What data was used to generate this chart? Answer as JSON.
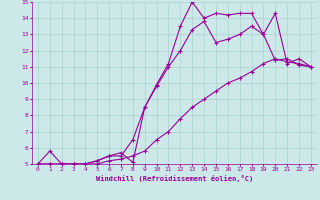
{
  "xlabel": "Windchill (Refroidissement éolien,°C)",
  "xlim": [
    -0.5,
    23.5
  ],
  "ylim": [
    5,
    15
  ],
  "xticks": [
    0,
    1,
    2,
    3,
    4,
    5,
    6,
    7,
    8,
    9,
    10,
    11,
    12,
    13,
    14,
    15,
    16,
    17,
    18,
    19,
    20,
    21,
    22,
    23
  ],
  "yticks": [
    5,
    6,
    7,
    8,
    9,
    10,
    11,
    12,
    13,
    14,
    15
  ],
  "background_color": "#cce8e8",
  "grid_color": "#aad0d0",
  "line_color": "#990099",
  "line1_x": [
    0,
    1,
    2,
    3,
    4,
    5,
    6,
    7,
    8,
    9,
    10,
    11,
    12,
    13,
    14,
    15,
    16,
    17,
    18,
    19,
    20,
    21,
    22,
    23
  ],
  "line1_y": [
    5.0,
    5.8,
    5.0,
    5.0,
    5.0,
    5.2,
    5.5,
    5.7,
    5.1,
    8.5,
    9.9,
    11.2,
    13.5,
    15.0,
    14.0,
    14.3,
    14.2,
    14.3,
    14.3,
    13.0,
    14.3,
    11.2,
    11.5,
    11.0
  ],
  "line2_x": [
    0,
    1,
    2,
    3,
    4,
    5,
    6,
    7,
    8,
    9,
    10,
    11,
    12,
    13,
    14,
    15,
    16,
    17,
    18,
    19,
    20,
    21,
    22,
    23
  ],
  "line2_y": [
    5.0,
    5.0,
    5.0,
    5.0,
    5.0,
    5.2,
    5.5,
    5.5,
    6.5,
    8.5,
    9.8,
    11.0,
    12.0,
    13.3,
    13.8,
    12.5,
    12.7,
    13.0,
    13.5,
    13.0,
    11.4,
    11.5,
    11.1,
    11.0
  ],
  "line3_x": [
    0,
    1,
    2,
    3,
    4,
    5,
    6,
    7,
    8,
    9,
    10,
    11,
    12,
    13,
    14,
    15,
    16,
    17,
    18,
    19,
    20,
    21,
    22,
    23
  ],
  "line3_y": [
    5.0,
    5.0,
    5.0,
    5.0,
    5.0,
    5.0,
    5.2,
    5.3,
    5.5,
    5.8,
    6.5,
    7.0,
    7.8,
    8.5,
    9.0,
    9.5,
    10.0,
    10.3,
    10.7,
    11.2,
    11.5,
    11.3,
    11.2,
    11.0
  ],
  "marker": "+",
  "markersize": 3,
  "markeredgewidth": 0.8,
  "linewidth": 0.8,
  "tick_labelsize": 4.5,
  "xlabel_fontsize": 5.0
}
